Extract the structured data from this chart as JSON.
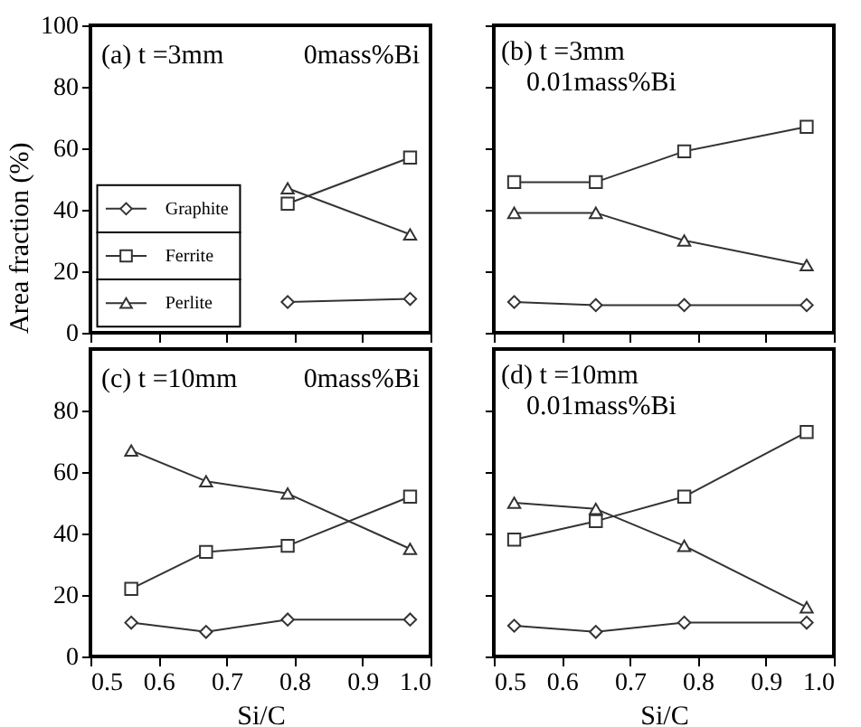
{
  "chart_data": [
    {
      "type": "line",
      "annotations": [
        "(a) t =3mm",
        "0mass%Bi"
      ],
      "ylabel": "Area fraction (%)",
      "xlim": [
        0.5,
        1.0
      ],
      "xticks": [
        0.5,
        0.6,
        0.7,
        0.8,
        0.9,
        1.0
      ],
      "ylim": [
        0,
        100
      ],
      "yticks": [
        0,
        20,
        40,
        60,
        80,
        100
      ],
      "tick_labels": "y",
      "legend": "bottom left",
      "grid": false,
      "series": [
        {
          "name": "Graphite",
          "marker": "diamond",
          "color": "#333333",
          "x": [
            0.79,
            0.97
          ],
          "values": [
            10,
            11
          ]
        },
        {
          "name": "Ferrite",
          "marker": "square",
          "color": "#333333",
          "x": [
            0.79,
            0.97
          ],
          "values": [
            42,
            57
          ]
        },
        {
          "name": "Perlite",
          "marker": "triangle",
          "color": "#333333",
          "x": [
            0.79,
            0.97
          ],
          "values": [
            47,
            32
          ]
        }
      ]
    },
    {
      "type": "line",
      "annotations": [
        "(b) t =3mm",
        "0.01mass%Bi"
      ],
      "xlim": [
        0.5,
        1.0
      ],
      "xticks": [
        0.5,
        0.6,
        0.7,
        0.8,
        0.9,
        1.0
      ],
      "ylim": [
        0,
        100
      ],
      "yticks": [
        0,
        20,
        40,
        60,
        80,
        100
      ],
      "tick_labels": false,
      "grid": false,
      "series": [
        {
          "marker": "diamond",
          "color": "#333333",
          "x": [
            0.53,
            0.65,
            0.78,
            0.96
          ],
          "values": [
            10,
            9,
            9,
            9
          ]
        },
        {
          "marker": "square",
          "color": "#333333",
          "x": [
            0.53,
            0.65,
            0.78,
            0.96
          ],
          "values": [
            49,
            49,
            59,
            67
          ]
        },
        {
          "marker": "triangle",
          "color": "#333333",
          "x": [
            0.53,
            0.65,
            0.78,
            0.96
          ],
          "values": [
            39,
            39,
            30,
            22
          ]
        }
      ]
    },
    {
      "type": "line",
      "annotations": [
        "(c) t =10mm",
        "0mass%Bi"
      ],
      "xlabel": "Si/C",
      "xlim": [
        0.5,
        1.0
      ],
      "xticks": [
        0.5,
        0.6,
        0.7,
        0.8,
        0.9,
        {
          "value": 1.0,
          "label": "1.0"
        }
      ],
      "ylim": [
        0,
        100
      ],
      "yticks": [
        0,
        20,
        40,
        60,
        80
      ],
      "grid": false,
      "series": [
        {
          "marker": "diamond",
          "color": "#333333",
          "x": [
            0.56,
            0.67,
            0.79,
            0.97
          ],
          "values": [
            11,
            8,
            12,
            12
          ]
        },
        {
          "marker": "square",
          "color": "#333333",
          "x": [
            0.56,
            0.67,
            0.79,
            0.97
          ],
          "values": [
            22,
            34,
            36,
            52
          ]
        },
        {
          "marker": "triangle",
          "color": "#333333",
          "x": [
            0.56,
            0.67,
            0.79,
            0.97
          ],
          "values": [
            67,
            57,
            53,
            35
          ]
        }
      ]
    },
    {
      "type": "line",
      "annotations": [
        "(d) t =10mm",
        "0.01mass%Bi"
      ],
      "xlabel": "Si/C",
      "xlim": [
        0.5,
        1.0
      ],
      "xticks": [
        0.5,
        0.6,
        0.7,
        0.8,
        0.9,
        {
          "value": 1.0,
          "label": "1.0"
        }
      ],
      "ylim": [
        0,
        100
      ],
      "yticks": [
        0,
        20,
        40,
        60,
        80
      ],
      "tick_labels": "x",
      "grid": false,
      "series": [
        {
          "marker": "diamond",
          "color": "#333333",
          "x": [
            0.53,
            0.65,
            0.78,
            0.96
          ],
          "values": [
            10,
            8,
            11,
            11
          ]
        },
        {
          "marker": "square",
          "color": "#333333",
          "x": [
            0.53,
            0.65,
            0.78,
            0.96
          ],
          "values": [
            38,
            44,
            52,
            73
          ]
        },
        {
          "marker": "triangle",
          "color": "#333333",
          "x": [
            0.53,
            0.65,
            0.78,
            0.96
          ],
          "values": [
            50,
            48,
            36,
            16
          ]
        }
      ]
    }
  ]
}
